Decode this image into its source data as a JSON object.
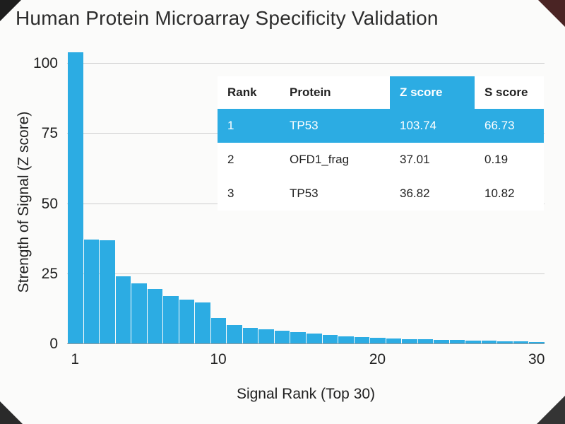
{
  "chart_data": {
    "type": "bar",
    "title": "Human Protein Microarray Specificity Validation",
    "xlabel": "Signal Rank (Top 30)",
    "ylabel": "Strength of Signal (Z score)",
    "ylim": [
      0,
      100
    ],
    "yticks": [
      0,
      25,
      50,
      75,
      100
    ],
    "xticks": [
      1,
      10,
      20,
      30
    ],
    "grid": true,
    "legend": false,
    "bar_color": "#2CACE3",
    "x": [
      1,
      2,
      3,
      4,
      5,
      6,
      7,
      8,
      9,
      10,
      11,
      12,
      13,
      14,
      15,
      16,
      17,
      18,
      19,
      20,
      21,
      22,
      23,
      24,
      25,
      26,
      27,
      28,
      29,
      30
    ],
    "values": [
      103.74,
      37.01,
      36.82,
      24.0,
      21.5,
      19.5,
      17.0,
      15.5,
      14.5,
      9.0,
      6.5,
      5.5,
      5.0,
      4.5,
      4.0,
      3.5,
      3.0,
      2.5,
      2.2,
      2.0,
      1.8,
      1.6,
      1.4,
      1.3,
      1.2,
      1.0,
      0.9,
      0.8,
      0.7,
      0.6
    ]
  },
  "table": {
    "headers": [
      "Rank",
      "Protein",
      "Z score",
      "S score"
    ],
    "header_highlight_col": 2,
    "highlight_row": 0,
    "highlight_color": "#2CACE3",
    "rows": [
      [
        "1",
        "TP53",
        "103.74",
        "66.73"
      ],
      [
        "2",
        "OFD1_frag",
        "37.01",
        "0.19"
      ],
      [
        "3",
        "TP53",
        "36.82",
        "10.82"
      ]
    ]
  }
}
